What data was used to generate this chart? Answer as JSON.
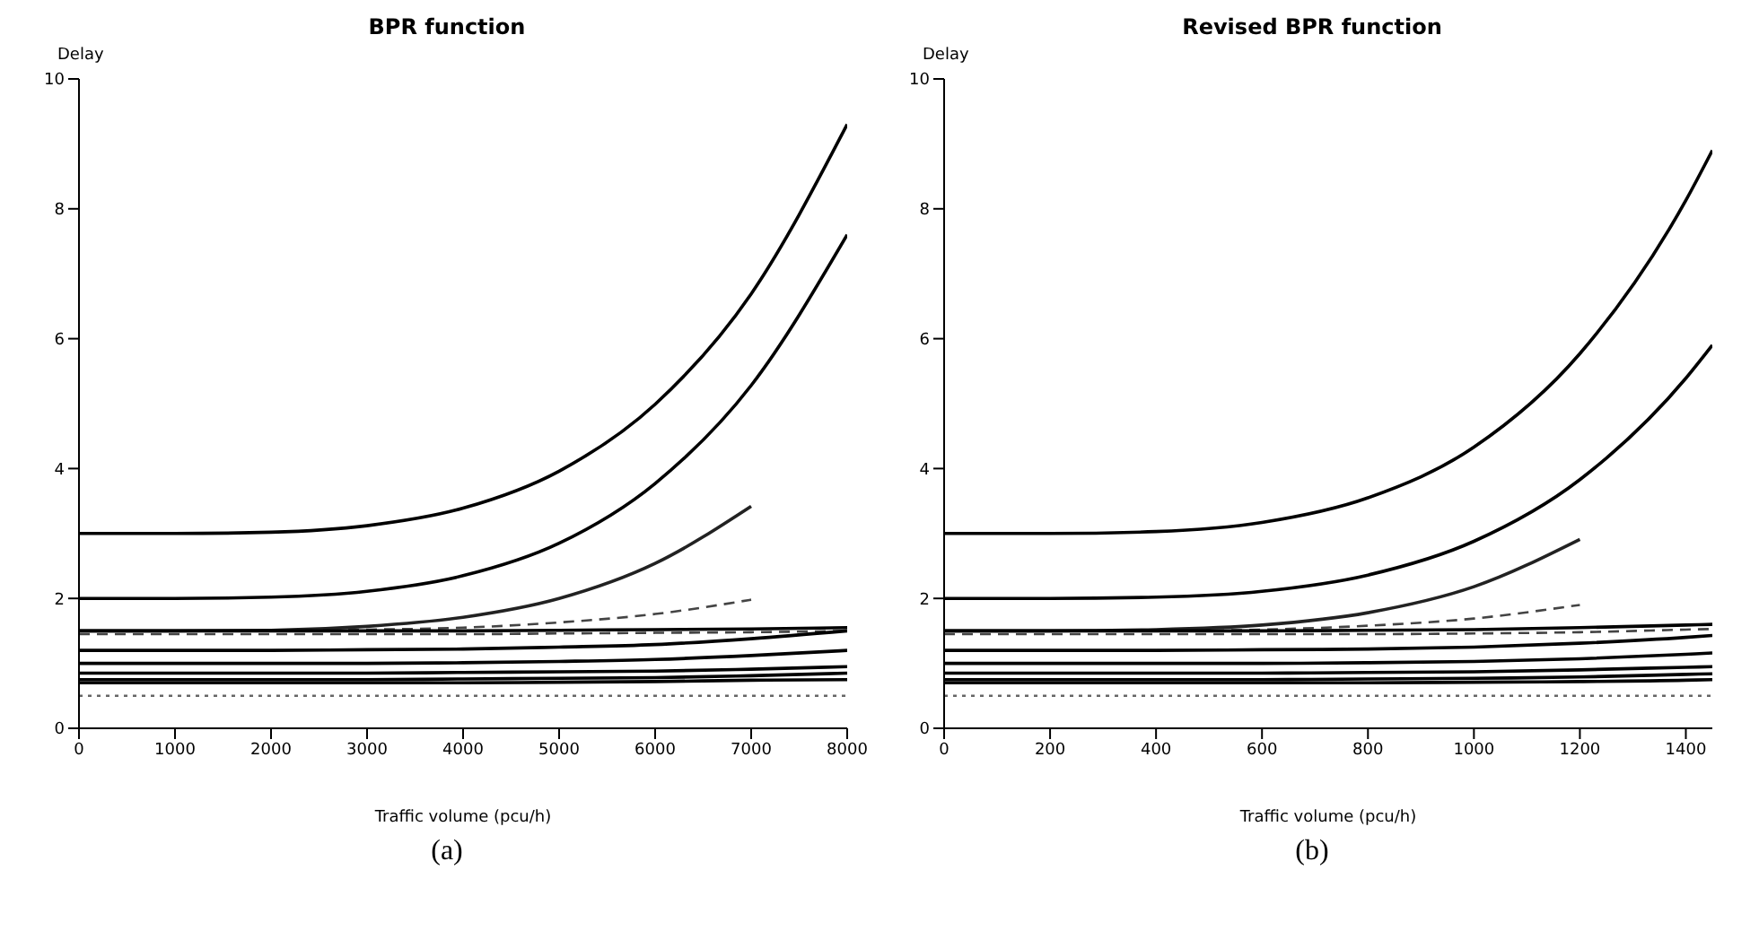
{
  "chart_data": [
    {
      "type": "line",
      "title": "BPR function",
      "xlabel": "Traffic volume (pcu/h)",
      "ylabel": "Delay",
      "annotations": [
        "(a)"
      ],
      "x": [
        0,
        1000,
        2000,
        3000,
        4000,
        5000,
        6000,
        7000,
        8000
      ],
      "xlim": [
        0,
        8000
      ],
      "xticks": [
        0,
        1000,
        2000,
        3000,
        4000,
        5000,
        6000,
        7000,
        8000
      ],
      "ylim": [
        0,
        10
      ],
      "yticks": [
        0,
        2,
        4,
        6,
        8,
        10
      ],
      "grid": false,
      "legend": false,
      "marker": "none",
      "line_style": "solid",
      "series": [
        {
          "color": "#000000",
          "values": [
            3.0,
            3.0,
            3.02,
            3.12,
            3.39,
            3.96,
            4.99,
            6.69,
            9.3
          ]
        },
        {
          "color": "#000000",
          "values": [
            2.0,
            2.0,
            2.02,
            2.11,
            2.35,
            2.85,
            3.77,
            5.28,
            7.6
          ]
        },
        {
          "color": "#222222",
          "values": [
            1.5,
            1.5,
            1.51,
            1.57,
            1.71,
            2.0,
            2.54,
            3.42,
            null
          ]
        },
        {
          "color": "#444444",
          "line_style": "dashed",
          "values": [
            1.5,
            1.5,
            1.5,
            1.52,
            1.55,
            1.63,
            1.76,
            1.98,
            null
          ]
        },
        {
          "color": "#000000",
          "values": [
            1.5,
            1.5,
            1.5,
            1.5,
            1.5,
            1.51,
            1.52,
            1.53,
            1.55
          ]
        },
        {
          "color": "#444444",
          "line_style": "dashed",
          "values": [
            1.45,
            1.45,
            1.45,
            1.45,
            1.45,
            1.46,
            1.47,
            1.48,
            1.5
          ]
        },
        {
          "color": "#000000",
          "values": [
            1.2,
            1.2,
            1.2,
            1.21,
            1.22,
            1.25,
            1.29,
            1.38,
            1.5
          ]
        },
        {
          "color": "#000000",
          "values": [
            1.0,
            1.0,
            1.0,
            1.0,
            1.01,
            1.03,
            1.06,
            1.12,
            1.2
          ]
        },
        {
          "color": "#000000",
          "values": [
            0.85,
            0.85,
            0.85,
            0.85,
            0.86,
            0.87,
            0.88,
            0.91,
            0.95
          ]
        },
        {
          "color": "#000000",
          "values": [
            0.75,
            0.75,
            0.75,
            0.75,
            0.76,
            0.77,
            0.78,
            0.81,
            0.85
          ]
        },
        {
          "color": "#000000",
          "values": [
            0.7,
            0.7,
            0.7,
            0.7,
            0.7,
            0.71,
            0.72,
            0.74,
            0.75
          ]
        },
        {
          "color": "#666666",
          "line_style": "dotted",
          "values": [
            0.5,
            0.5,
            0.5,
            0.5,
            0.5,
            0.5,
            0.5,
            0.5,
            0.5
          ]
        }
      ]
    },
    {
      "type": "line",
      "title": "Revised BPR function",
      "xlabel": "Traffic volume (pcu/h)",
      "ylabel": "Delay",
      "annotations": [
        "(b)"
      ],
      "x": [
        0,
        200,
        400,
        600,
        800,
        1000,
        1200,
        1400,
        1450
      ],
      "xlim": [
        0,
        1450
      ],
      "xticks": [
        0,
        200,
        400,
        600,
        800,
        1000,
        1200,
        1400
      ],
      "ylim": [
        0,
        10
      ],
      "yticks": [
        0,
        2,
        4,
        6,
        8,
        10
      ],
      "grid": false,
      "legend": false,
      "marker": "none",
      "line_style": "solid",
      "series": [
        {
          "color": "#000000",
          "values": [
            3.0,
            3.0,
            3.03,
            3.17,
            3.55,
            4.33,
            5.77,
            8.13,
            8.9
          ]
        },
        {
          "color": "#000000",
          "values": [
            2.0,
            2.0,
            2.02,
            2.11,
            2.36,
            2.88,
            3.83,
            5.39,
            5.9
          ]
        },
        {
          "color": "#222222",
          "values": [
            1.5,
            1.5,
            1.52,
            1.59,
            1.78,
            2.18,
            2.91,
            null,
            null
          ]
        },
        {
          "color": "#444444",
          "line_style": "dashed",
          "values": [
            1.5,
            1.5,
            1.5,
            1.52,
            1.58,
            1.69,
            1.9,
            null,
            null
          ]
        },
        {
          "color": "#000000",
          "values": [
            1.5,
            1.5,
            1.5,
            1.5,
            1.51,
            1.52,
            1.55,
            1.59,
            1.6
          ]
        },
        {
          "color": "#444444",
          "line_style": "dashed",
          "values": [
            1.45,
            1.45,
            1.45,
            1.45,
            1.45,
            1.46,
            1.48,
            1.52,
            1.53
          ]
        },
        {
          "color": "#000000",
          "values": [
            1.2,
            1.2,
            1.2,
            1.21,
            1.22,
            1.25,
            1.31,
            1.4,
            1.43
          ]
        },
        {
          "color": "#000000",
          "values": [
            1.0,
            1.0,
            1.0,
            1.0,
            1.01,
            1.03,
            1.07,
            1.14,
            1.16
          ]
        },
        {
          "color": "#000000",
          "values": [
            0.85,
            0.85,
            0.85,
            0.85,
            0.86,
            0.87,
            0.9,
            0.94,
            0.95
          ]
        },
        {
          "color": "#000000",
          "values": [
            0.75,
            0.75,
            0.75,
            0.75,
            0.76,
            0.77,
            0.79,
            0.83,
            0.84
          ]
        },
        {
          "color": "#000000",
          "values": [
            0.7,
            0.7,
            0.7,
            0.7,
            0.7,
            0.71,
            0.72,
            0.74,
            0.75
          ]
        },
        {
          "color": "#666666",
          "line_style": "dotted",
          "values": [
            0.5,
            0.5,
            0.5,
            0.5,
            0.5,
            0.5,
            0.5,
            0.5,
            0.5
          ]
        }
      ]
    }
  ]
}
